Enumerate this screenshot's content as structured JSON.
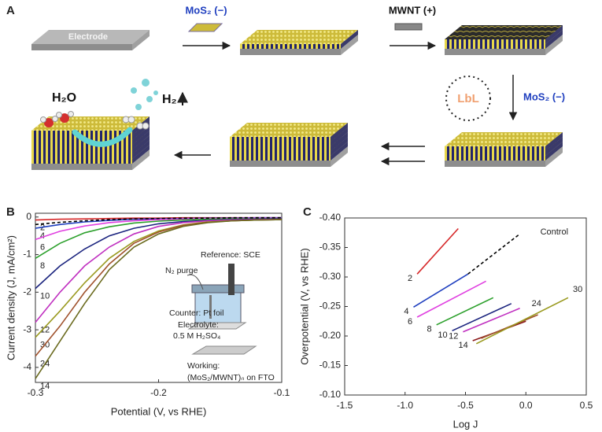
{
  "panel_a": {
    "label": "A",
    "electrode": "Electrode",
    "step1": "MoS₂ (−)",
    "step2": "MWNT (+)",
    "step3": "MoS₂ (−)",
    "cycle": "LbL",
    "water": "H₂O",
    "hydrogen": "H₂"
  },
  "chart_data": [
    {
      "type": "line",
      "label": "B",
      "xlabel": "Potential (V, vs RHE)",
      "ylabel": "Current density (J, mA/cm²)",
      "x": [
        -0.3,
        -0.28,
        -0.26,
        -0.24,
        -0.22,
        -0.2,
        -0.18,
        -0.16,
        -0.14,
        -0.12,
        -0.1
      ],
      "xlim": [
        -0.3,
        -0.1
      ],
      "xticks": [
        -0.3,
        -0.2,
        -0.1
      ],
      "ylim": [
        -4.4,
        0.1
      ],
      "yticks": [
        0,
        -1,
        -2,
        -3,
        -4
      ],
      "annotations": [
        "Reference: SCE",
        "N₂ purge",
        "Counter: Pt foil",
        "Electrolyte:",
        "0.5 M H₂SO₄",
        "Working:",
        "(MoS₂/MWNT)ₙ on FTO"
      ],
      "series": [
        {
          "name": "2",
          "color": "#d62728",
          "values": [
            -0.08,
            -0.06,
            -0.05,
            -0.04,
            -0.03,
            -0.03,
            -0.02,
            -0.02,
            -0.02,
            -0.02,
            -0.02
          ]
        },
        {
          "name": "4",
          "color": "#1f3fbf",
          "values": [
            -0.3,
            -0.2,
            -0.13,
            -0.09,
            -0.06,
            -0.05,
            -0.04,
            -0.03,
            -0.03,
            -0.02,
            -0.02
          ]
        },
        {
          "name": "6",
          "color": "#e040e0",
          "values": [
            -0.6,
            -0.38,
            -0.24,
            -0.15,
            -0.1,
            -0.07,
            -0.05,
            -0.04,
            -0.04,
            -0.03,
            -0.03
          ]
        },
        {
          "name": "8",
          "color": "#2ca02c",
          "values": [
            -1.1,
            -0.7,
            -0.42,
            -0.26,
            -0.16,
            -0.11,
            -0.08,
            -0.06,
            -0.05,
            -0.05,
            -0.04
          ]
        },
        {
          "name": "10",
          "color": "#1a237e",
          "values": [
            -1.9,
            -1.3,
            -0.85,
            -0.5,
            -0.3,
            -0.18,
            -0.12,
            -0.09,
            -0.07,
            -0.06,
            -0.05
          ]
        },
        {
          "name": "12",
          "color": "#c030c0",
          "values": [
            -2.8,
            -2.0,
            -1.3,
            -0.8,
            -0.45,
            -0.25,
            -0.15,
            -0.1,
            -0.08,
            -0.07,
            -0.06
          ]
        },
        {
          "name": "30",
          "color": "#9a9a20",
          "values": [
            -3.2,
            -2.5,
            -1.75,
            -1.1,
            -0.65,
            -0.37,
            -0.21,
            -0.13,
            -0.1,
            -0.08,
            -0.07
          ]
        },
        {
          "name": "24",
          "color": "#a0522d",
          "values": [
            -3.7,
            -2.9,
            -2.0,
            -1.25,
            -0.7,
            -0.4,
            -0.22,
            -0.14,
            -0.1,
            -0.08,
            -0.07
          ]
        },
        {
          "name": "14",
          "color": "#6b6b1f",
          "values": [
            -4.3,
            -3.3,
            -2.3,
            -1.4,
            -0.8,
            -0.45,
            -0.25,
            -0.15,
            -0.1,
            -0.08,
            -0.07
          ]
        },
        {
          "color": "#000000",
          "dashed": true,
          "values": [
            -0.2,
            -0.14,
            -0.1,
            -0.07,
            -0.05,
            -0.04,
            -0.03,
            -0.03,
            -0.02,
            -0.02,
            -0.02
          ]
        }
      ]
    },
    {
      "type": "line",
      "label": "C",
      "xlabel": "Log J",
      "ylabel": "Overpotential (V, vs RHE)",
      "xlim": [
        -1.5,
        0.5
      ],
      "xticks": [
        -1.5,
        {
          "value": -1,
          "label": "-1.0"
        },
        -0.5,
        {
          "value": 0,
          "label": "0.0"
        },
        0.5
      ],
      "ylim": [
        -0.1,
        -0.4
      ],
      "yticks": [
        {
          "value": -0.4,
          "label": "-0.40"
        },
        {
          "value": -0.35,
          "label": "-0.35"
        },
        {
          "value": -0.3,
          "label": "-0.30"
        },
        {
          "value": -0.25,
          "label": "-0.25"
        },
        {
          "value": -0.2,
          "label": "-0.20"
        },
        {
          "value": -0.15,
          "label": "-0.15"
        },
        {
          "value": -0.1,
          "label": "-0.10"
        }
      ],
      "series": [
        {
          "name": "2",
          "color": "#d62728",
          "x": [
            -0.9,
            -0.56
          ],
          "values": [
            -0.305,
            -0.382
          ]
        },
        {
          "name": "4",
          "color": "#1f3fbf",
          "x": [
            -0.93,
            -0.48
          ],
          "values": [
            -0.249,
            -0.305
          ]
        },
        {
          "name": "6",
          "color": "#e040e0",
          "x": [
            -0.9,
            -0.33
          ],
          "values": [
            -0.232,
            -0.293
          ]
        },
        {
          "name": "8",
          "color": "#2ca02c",
          "x": [
            -0.74,
            -0.27
          ],
          "values": [
            -0.219,
            -0.265
          ]
        },
        {
          "name": "10",
          "color": "#1a237e",
          "x": [
            -0.61,
            -0.12
          ],
          "values": [
            -0.209,
            -0.255
          ]
        },
        {
          "name": "12",
          "color": "#c030c0",
          "x": [
            -0.52,
            -0.05
          ],
          "values": [
            -0.207,
            -0.247
          ]
        },
        {
          "name": "14",
          "color": "#8b1a1a",
          "x": [
            -0.44,
            0.0
          ],
          "values": [
            -0.192,
            -0.225
          ]
        },
        {
          "name": "24",
          "color": "#a0522d",
          "x": [
            -0.37,
            0.1
          ],
          "values": [
            -0.196,
            -0.236
          ]
        },
        {
          "name": "30",
          "color": "#9a9a20",
          "x": [
            -0.41,
            0.35
          ],
          "values": [
            -0.187,
            -0.265
          ]
        },
        {
          "name": "Control",
          "color": "#000000",
          "dashed": true,
          "x": [
            -0.48,
            -0.05
          ],
          "values": [
            -0.305,
            -0.373
          ]
        }
      ]
    }
  ]
}
